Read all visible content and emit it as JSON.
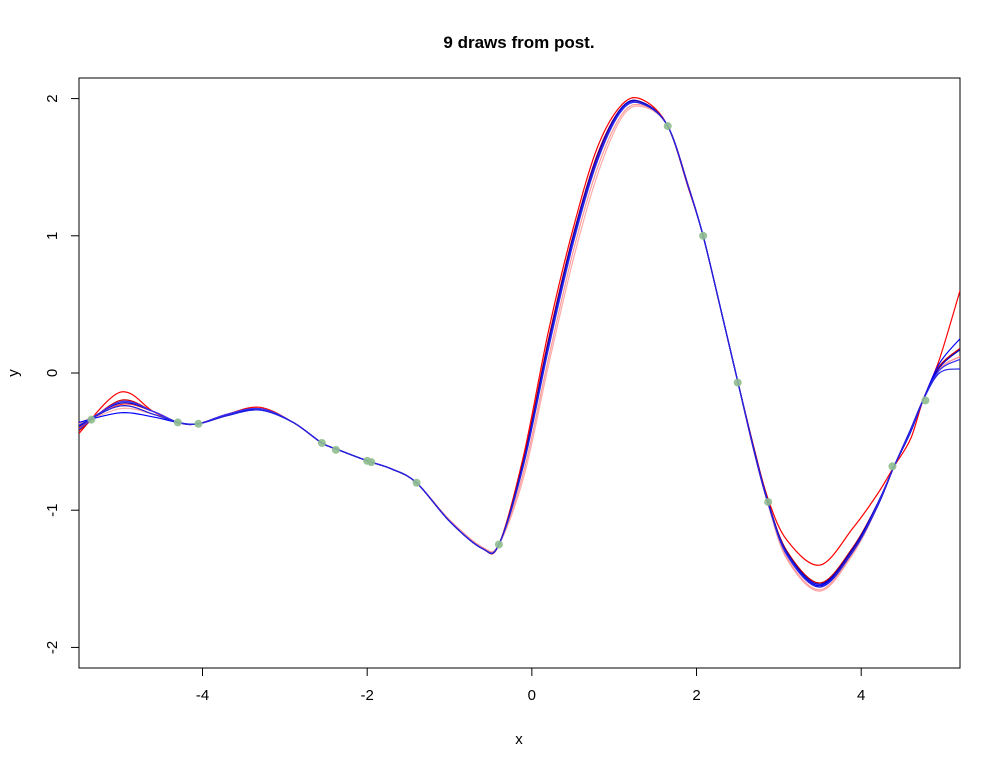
{
  "chart_data": {
    "type": "line",
    "title": "9 draws from post.",
    "xlabel": "x",
    "ylabel": "y",
    "xlim": [
      -5.5,
      5.2
    ],
    "ylim": [
      -2.15,
      2.15
    ],
    "x_ticks": [
      -4,
      -2,
      0,
      2,
      4
    ],
    "y_ticks": [
      -2,
      -1,
      0,
      1,
      2
    ],
    "x_tick_labels": [
      "-4",
      "-2",
      "0",
      "2",
      "4"
    ],
    "y_tick_labels": [
      "-2",
      "-1",
      "0",
      "1",
      "2"
    ],
    "grid": false,
    "legend": "none",
    "curve_x": [
      -5.5,
      -5.0,
      -4.6,
      -4.3,
      -4.05,
      -3.7,
      -3.3,
      -2.9,
      -2.55,
      -2.35,
      -2.0,
      -1.7,
      -1.4,
      -1.0,
      -0.6,
      -0.4,
      -0.1,
      0.2,
      0.5,
      0.8,
      1.1,
      1.35,
      1.65,
      1.9,
      2.08,
      2.3,
      2.5,
      2.7,
      2.87,
      3.1,
      3.5,
      3.9,
      4.2,
      4.4,
      4.6,
      4.75,
      4.95,
      5.2
    ],
    "series": [
      {
        "color": "#ff0000",
        "y": [
          -0.44,
          -0.14,
          -0.28,
          -0.36,
          -0.37,
          -0.3,
          -0.25,
          -0.36,
          -0.51,
          -0.56,
          -0.64,
          -0.7,
          -0.8,
          -1.08,
          -1.28,
          -1.25,
          -0.6,
          0.3,
          1.05,
          1.65,
          1.96,
          1.99,
          1.8,
          1.35,
          1.0,
          0.45,
          -0.06,
          -0.55,
          -0.92,
          -1.22,
          -1.4,
          -1.13,
          -0.88,
          -0.68,
          -0.48,
          -0.2,
          0.1,
          0.6
        ]
      },
      {
        "color": "#cc0000",
        "y": [
          -0.42,
          -0.2,
          -0.28,
          -0.36,
          -0.37,
          -0.3,
          -0.26,
          -0.36,
          -0.51,
          -0.56,
          -0.64,
          -0.7,
          -0.8,
          -1.08,
          -1.28,
          -1.25,
          -0.63,
          0.24,
          1.0,
          1.6,
          1.94,
          1.97,
          1.8,
          1.36,
          1.0,
          0.45,
          -0.06,
          -0.56,
          -0.94,
          -1.3,
          -1.53,
          -1.27,
          -0.95,
          -0.68,
          -0.42,
          -0.2,
          0.05,
          0.18
        ]
      },
      {
        "color": "#ff3333",
        "y": [
          -0.4,
          -0.23,
          -0.28,
          -0.36,
          -0.37,
          -0.31,
          -0.26,
          -0.36,
          -0.51,
          -0.56,
          -0.64,
          -0.7,
          -0.8,
          -1.08,
          -1.28,
          -1.25,
          -0.65,
          0.2,
          0.97,
          1.57,
          1.93,
          1.96,
          1.8,
          1.36,
          1.0,
          0.45,
          -0.06,
          -0.57,
          -0.95,
          -1.33,
          -1.56,
          -1.29,
          -0.96,
          -0.68,
          -0.42,
          -0.2,
          0.03,
          0.12
        ]
      },
      {
        "color": "#ffaaaa",
        "y": [
          -0.38,
          -0.26,
          -0.3,
          -0.36,
          -0.37,
          -0.31,
          -0.26,
          -0.36,
          -0.51,
          -0.56,
          -0.64,
          -0.7,
          -0.8,
          -1.07,
          -1.27,
          -1.25,
          -0.76,
          0.05,
          0.82,
          1.45,
          1.87,
          1.94,
          1.8,
          1.37,
          1.0,
          0.45,
          -0.06,
          -0.58,
          -0.96,
          -1.36,
          -1.59,
          -1.32,
          -0.97,
          -0.68,
          -0.41,
          -0.2,
          0.02,
          0.1
        ]
      },
      {
        "color": "#ff9999",
        "y": [
          -0.37,
          -0.24,
          -0.3,
          -0.36,
          -0.37,
          -0.31,
          -0.26,
          -0.36,
          -0.51,
          -0.56,
          -0.64,
          -0.7,
          -0.8,
          -1.07,
          -1.27,
          -1.25,
          -0.72,
          0.1,
          0.88,
          1.5,
          1.89,
          1.95,
          1.8,
          1.37,
          1.0,
          0.45,
          -0.06,
          -0.58,
          -0.96,
          -1.35,
          -1.58,
          -1.31,
          -0.97,
          -0.68,
          -0.41,
          -0.2,
          0.03,
          0.12
        ]
      },
      {
        "color": "#0000ff",
        "y": [
          -0.36,
          -0.29,
          -0.32,
          -0.36,
          -0.37,
          -0.31,
          -0.27,
          -0.36,
          -0.51,
          -0.56,
          -0.64,
          -0.7,
          -0.8,
          -1.08,
          -1.28,
          -1.25,
          -0.66,
          0.18,
          0.95,
          1.56,
          1.92,
          1.96,
          1.8,
          1.36,
          1.0,
          0.45,
          -0.06,
          -0.57,
          -0.95,
          -1.32,
          -1.55,
          -1.28,
          -0.96,
          -0.68,
          -0.43,
          -0.2,
          0.07,
          0.25
        ]
      },
      {
        "color": "#0000cc",
        "y": [
          -0.39,
          -0.22,
          -0.28,
          -0.36,
          -0.37,
          -0.31,
          -0.26,
          -0.36,
          -0.51,
          -0.56,
          -0.64,
          -0.7,
          -0.8,
          -1.08,
          -1.28,
          -1.25,
          -0.64,
          0.22,
          0.99,
          1.59,
          1.94,
          1.97,
          1.8,
          1.36,
          1.0,
          0.45,
          -0.06,
          -0.56,
          -0.94,
          -1.31,
          -1.54,
          -1.28,
          -0.95,
          -0.68,
          -0.43,
          -0.2,
          0.04,
          0.17
        ]
      },
      {
        "color": "#3333ff",
        "y": [
          -0.41,
          -0.21,
          -0.28,
          -0.36,
          -0.37,
          -0.3,
          -0.26,
          -0.36,
          -0.51,
          -0.56,
          -0.64,
          -0.7,
          -0.8,
          -1.08,
          -1.28,
          -1.25,
          -0.67,
          0.17,
          0.94,
          1.55,
          1.92,
          1.96,
          1.8,
          1.36,
          1.0,
          0.45,
          -0.06,
          -0.57,
          -0.95,
          -1.33,
          -1.56,
          -1.3,
          -0.96,
          -0.68,
          -0.42,
          -0.2,
          0.02,
          0.1
        ]
      },
      {
        "color": "#2222dd",
        "y": [
          -0.38,
          -0.24,
          -0.3,
          -0.36,
          -0.37,
          -0.31,
          -0.27,
          -0.36,
          -0.51,
          -0.56,
          -0.64,
          -0.7,
          -0.8,
          -1.08,
          -1.28,
          -1.25,
          -0.66,
          0.19,
          0.96,
          1.56,
          1.93,
          1.96,
          1.8,
          1.36,
          1.0,
          0.45,
          -0.06,
          -0.57,
          -0.95,
          -1.32,
          -1.56,
          -1.3,
          -0.97,
          -0.68,
          -0.41,
          -0.2,
          0.0,
          0.03
        ]
      }
    ],
    "points_color": "#8fbc8f",
    "points": [
      {
        "x": -5.35,
        "y": -0.34
      },
      {
        "x": -4.3,
        "y": -0.36
      },
      {
        "x": -4.05,
        "y": -0.37
      },
      {
        "x": -2.55,
        "y": -0.51
      },
      {
        "x": -2.38,
        "y": -0.56
      },
      {
        "x": -2.0,
        "y": -0.64
      },
      {
        "x": -1.95,
        "y": -0.65
      },
      {
        "x": -1.4,
        "y": -0.8
      },
      {
        "x": -0.4,
        "y": -1.25
      },
      {
        "x": 1.65,
        "y": 1.8
      },
      {
        "x": 2.08,
        "y": 1.0
      },
      {
        "x": 2.5,
        "y": -0.07
      },
      {
        "x": 2.87,
        "y": -0.94
      },
      {
        "x": 4.38,
        "y": -0.68
      },
      {
        "x": 4.78,
        "y": -0.2
      }
    ]
  }
}
